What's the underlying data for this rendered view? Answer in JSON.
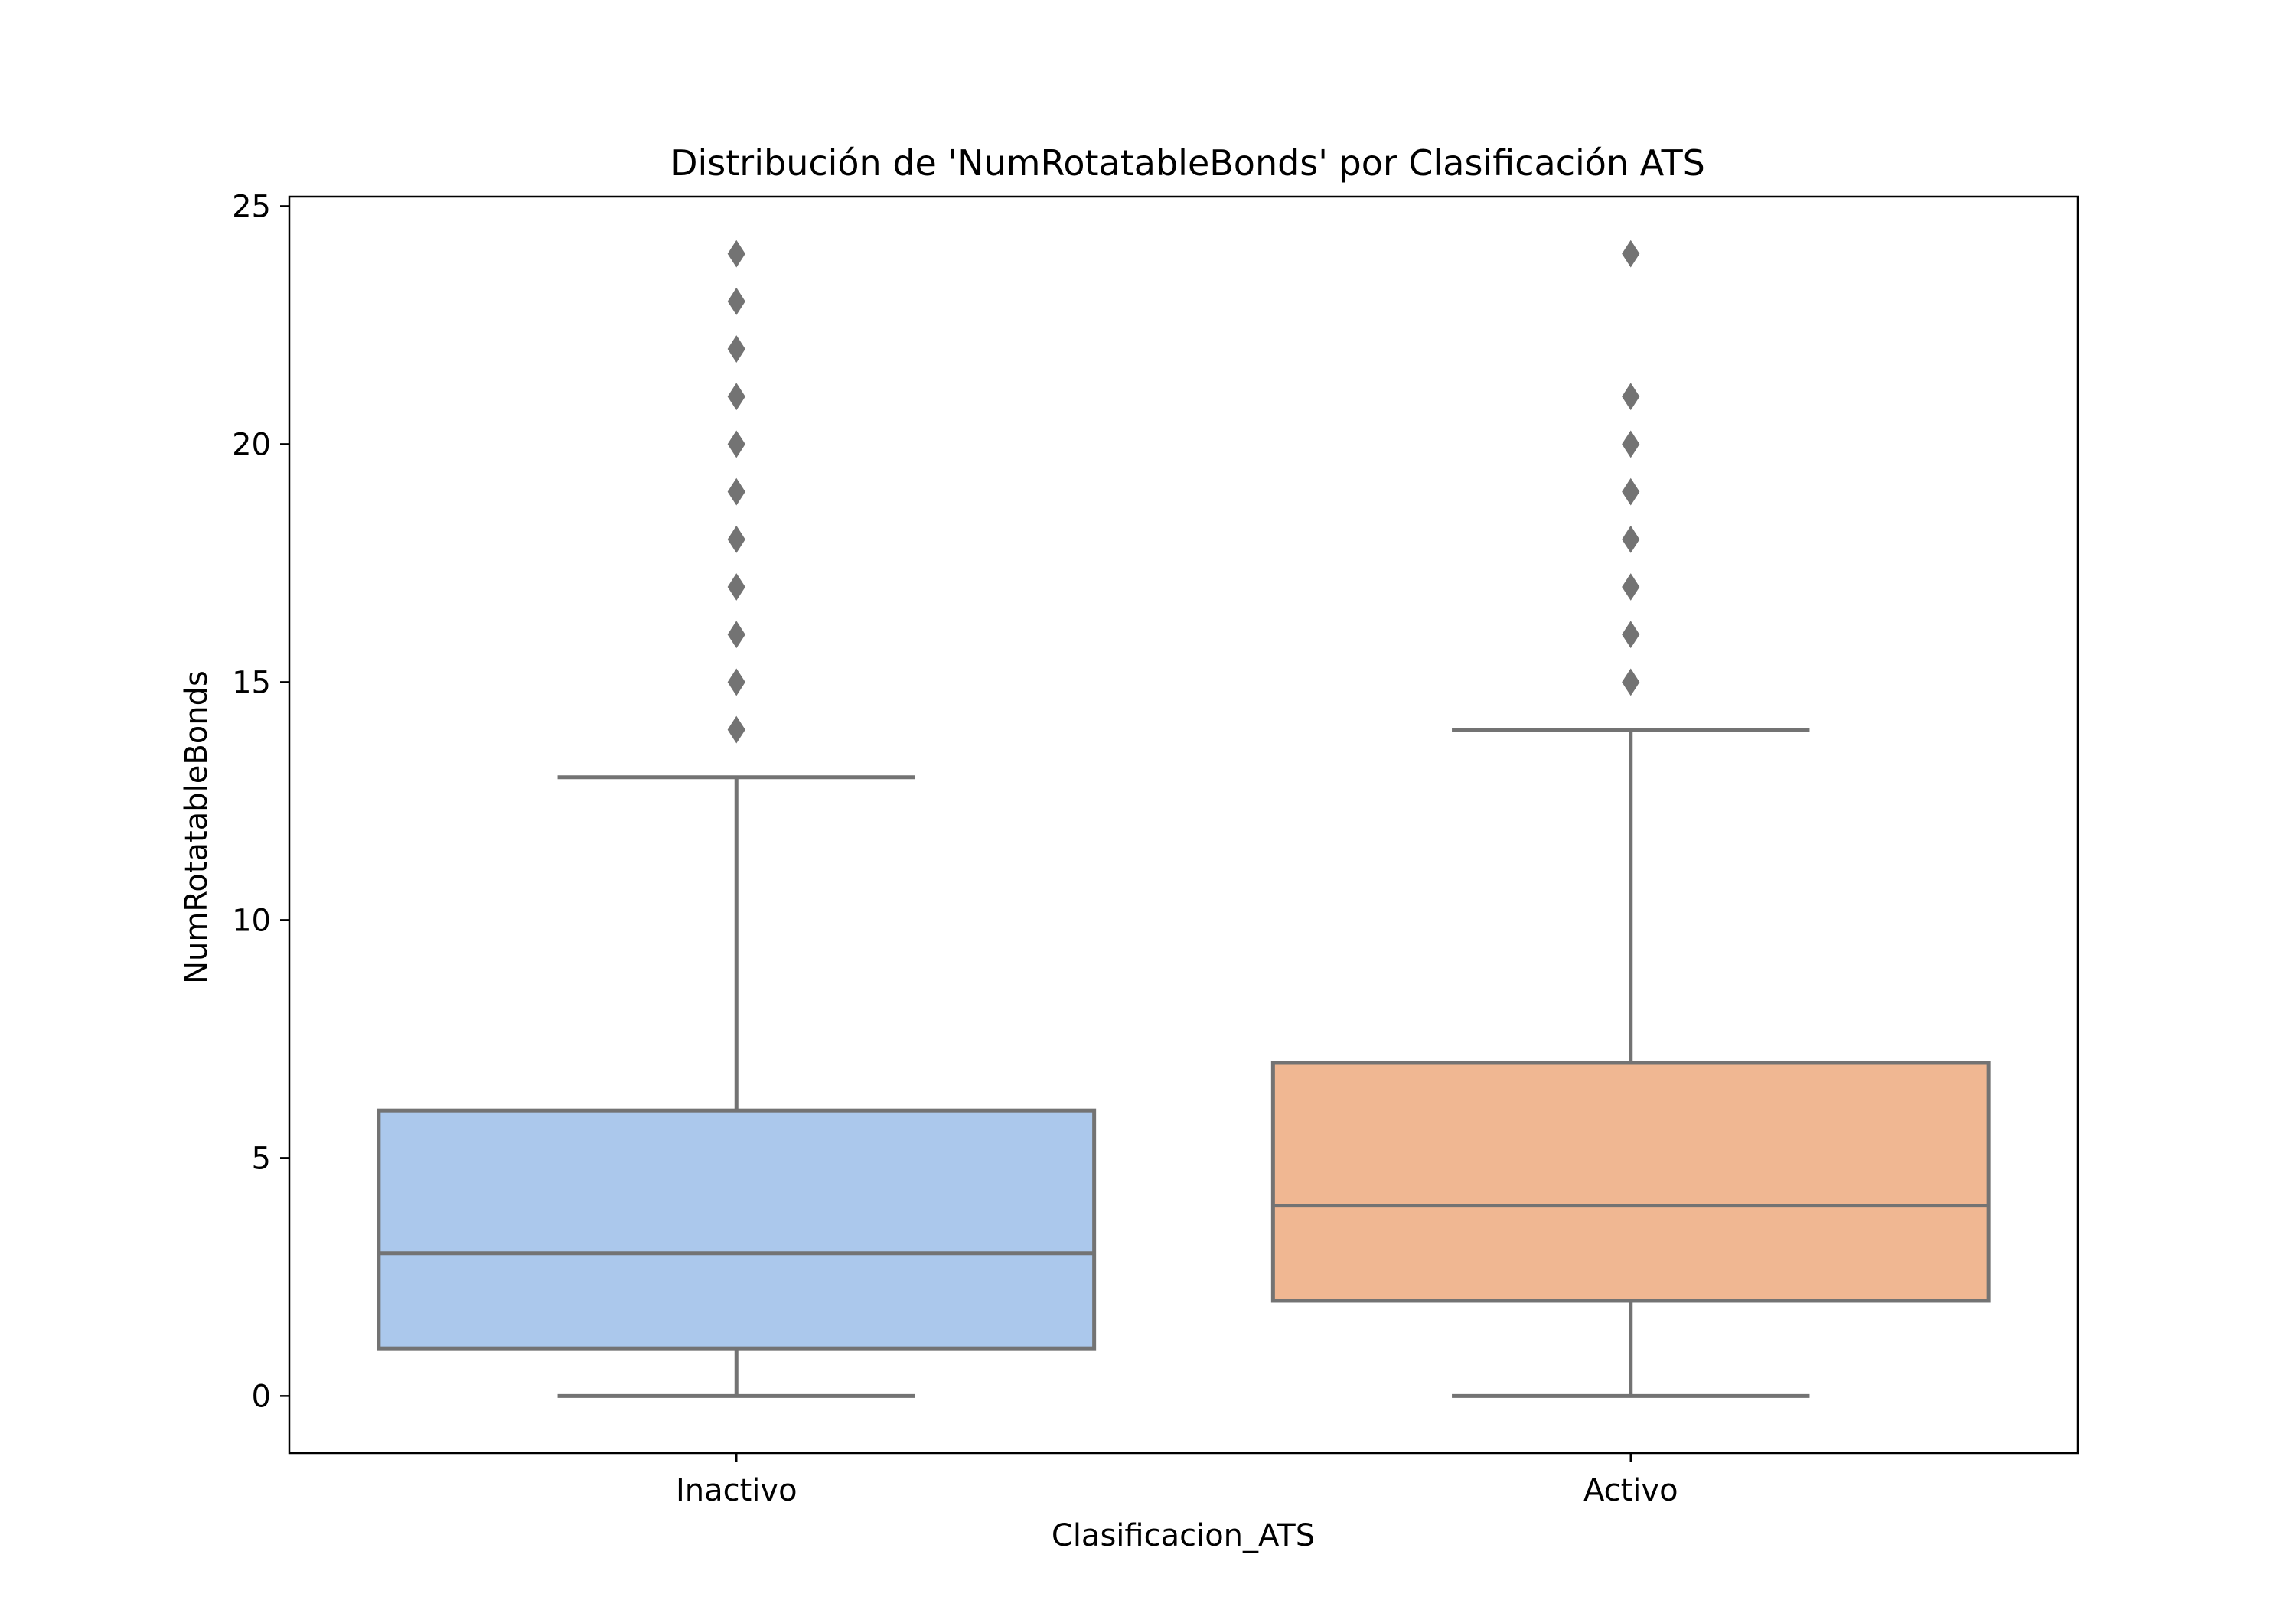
{
  "chart_data": {
    "type": "box",
    "title": "Distribución de 'NumRotatableBonds' por Clasificación ATS",
    "xlabel": "Clasificacion_ATS",
    "ylabel": "NumRotatableBonds",
    "categories": [
      "Inactivo",
      "Activo"
    ],
    "ylim": [
      -1.2,
      25.2
    ],
    "yticks": [
      0,
      5,
      10,
      15,
      20,
      25
    ],
    "grid": false,
    "series": [
      {
        "category": "Inactivo",
        "color": "#abc8ec",
        "whisker_low": 0,
        "q1": 1,
        "median": 3,
        "q3": 6,
        "whisker_high": 13,
        "outliers": [
          14,
          15,
          16,
          17,
          18,
          19,
          20,
          21,
          22,
          23,
          24
        ]
      },
      {
        "category": "Activo",
        "color": "#f0b792",
        "whisker_low": 0,
        "q1": 2,
        "median": 4,
        "q3": 7,
        "whisker_high": 14,
        "outliers": [
          15,
          16,
          17,
          18,
          19,
          20,
          21,
          24
        ]
      }
    ],
    "line_color": "#737373",
    "outlier_color": "#737373"
  }
}
